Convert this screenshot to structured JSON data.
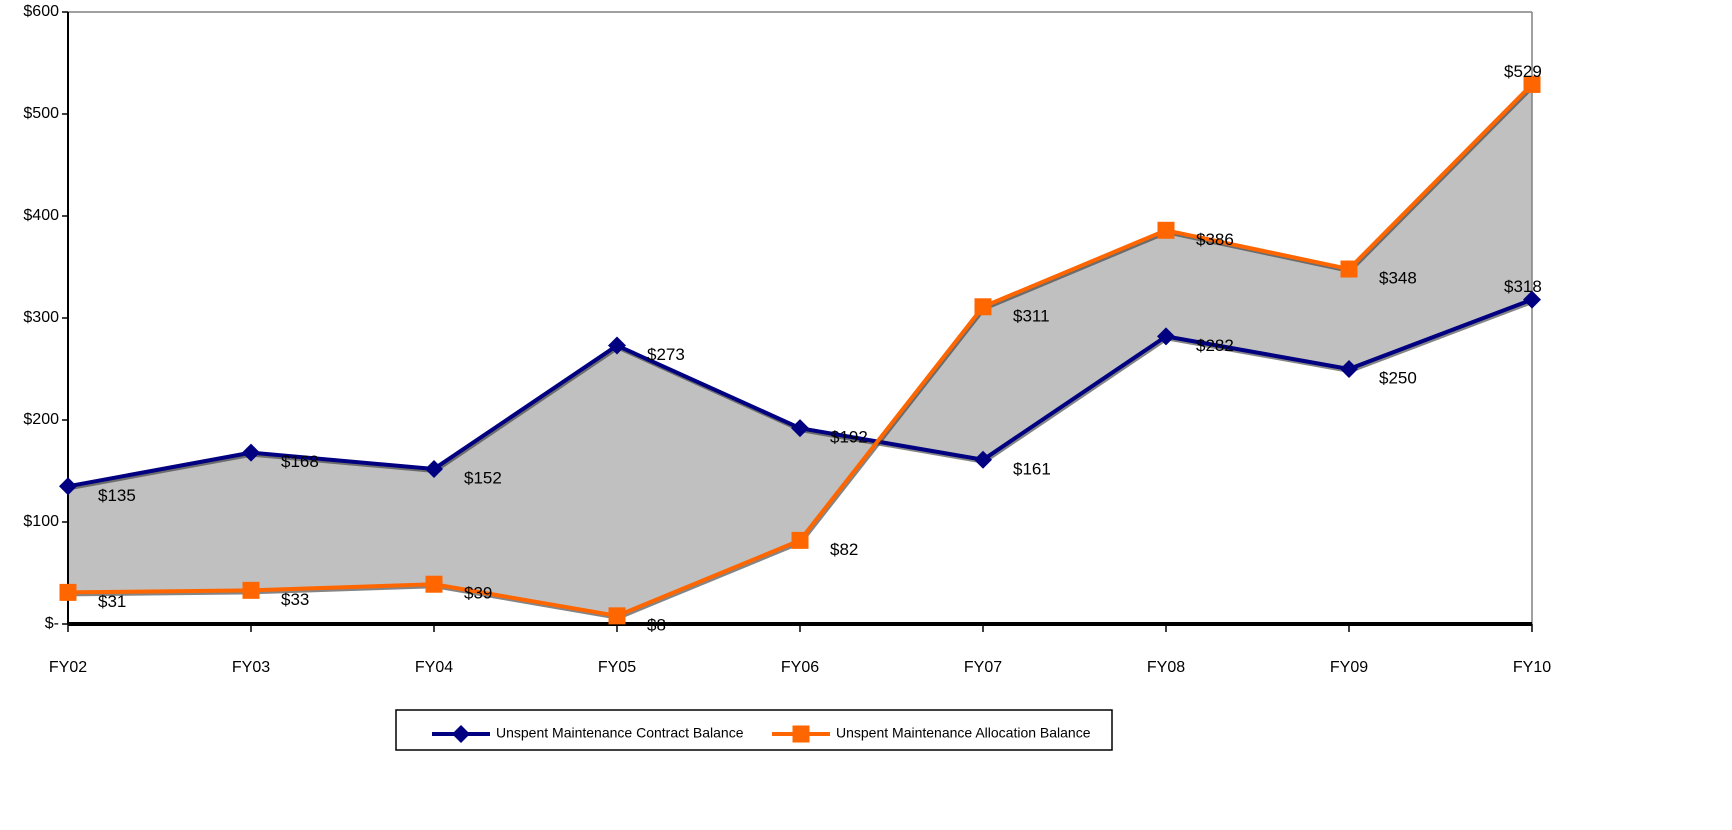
{
  "chart_data": {
    "type": "area",
    "title": "",
    "xlabel": "",
    "ylabel": "",
    "categories": [
      "FY02",
      "FY03",
      "FY04",
      "FY05",
      "FY06",
      "FY07",
      "FY08",
      "FY09",
      "FY10"
    ],
    "ylim": [
      0,
      600
    ],
    "yticks": [
      {
        "value": 0,
        "label": "$-"
      },
      {
        "value": 100,
        "label": "$100"
      },
      {
        "value": 200,
        "label": "$200"
      },
      {
        "value": 300,
        "label": "$300"
      },
      {
        "value": 400,
        "label": "$400"
      },
      {
        "value": 500,
        "label": "$500"
      },
      {
        "value": 600,
        "label": "$600"
      }
    ],
    "grid": false,
    "fill_between_series": true,
    "fill_color": "#c0c0c0",
    "legend_position": "bottom-center",
    "series": [
      {
        "name": "Unspent Maintenance Contract Balance",
        "marker": "diamond",
        "color": "#000080",
        "values": [
          135,
          168,
          152,
          273,
          192,
          161,
          282,
          250,
          318
        ],
        "labels": [
          "$135",
          "$168",
          "$152",
          "$273",
          "$192",
          "$161",
          "$282",
          "$250",
          "$318"
        ]
      },
      {
        "name": "Unspent Maintenance Allocation Balance",
        "marker": "square",
        "color": "#ff6600",
        "values": [
          31,
          33,
          39,
          8,
          82,
          311,
          386,
          348,
          529
        ],
        "labels": [
          "$31",
          "$33",
          "$39",
          "$8",
          "$82",
          "$311",
          "$386",
          "$348",
          "$529"
        ]
      }
    ]
  }
}
